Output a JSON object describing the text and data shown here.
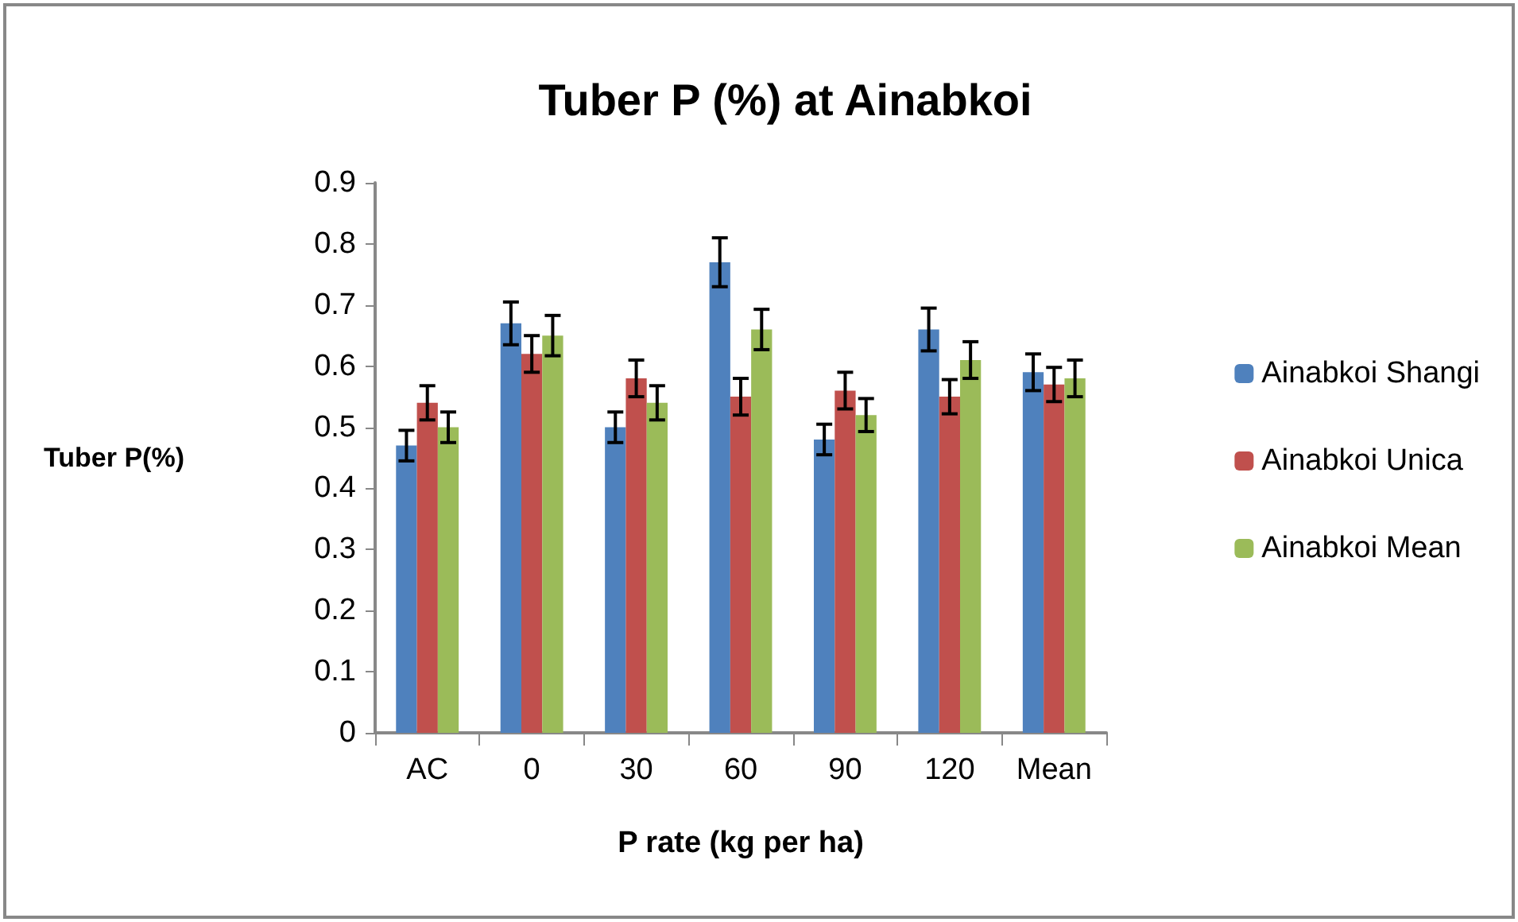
{
  "chart_data": {
    "type": "bar",
    "title": "Tuber P (%) at Ainabkoi",
    "xlabel": "P rate (kg per ha)",
    "ylabel": "Tuber P(%)",
    "categories": [
      "AC",
      "0",
      "30",
      "60",
      "90",
      "120",
      "Mean"
    ],
    "series": [
      {
        "name": "Ainabkoi Shangi",
        "color": "#4f81bd",
        "values": [
          0.47,
          0.67,
          0.5,
          0.77,
          0.48,
          0.66,
          0.59
        ],
        "errors": [
          0.025,
          0.035,
          0.025,
          0.04,
          0.025,
          0.035,
          0.03
        ]
      },
      {
        "name": "Ainabkoi Unica",
        "color": "#c0504d",
        "values": [
          0.54,
          0.62,
          0.58,
          0.55,
          0.56,
          0.55,
          0.57
        ],
        "errors": [
          0.028,
          0.03,
          0.03,
          0.03,
          0.03,
          0.028,
          0.028
        ]
      },
      {
        "name": "Ainabkoi Mean",
        "color": "#9bbb59",
        "values": [
          0.5,
          0.65,
          0.54,
          0.66,
          0.52,
          0.61,
          0.58
        ],
        "errors": [
          0.025,
          0.033,
          0.028,
          0.033,
          0.027,
          0.03,
          0.03
        ]
      }
    ],
    "ylim": [
      0,
      0.9
    ],
    "yticks": [
      0,
      0.1,
      0.2,
      0.3,
      0.4,
      0.5,
      0.6,
      0.7,
      0.8,
      0.9
    ],
    "grid": false,
    "legend": "right"
  }
}
